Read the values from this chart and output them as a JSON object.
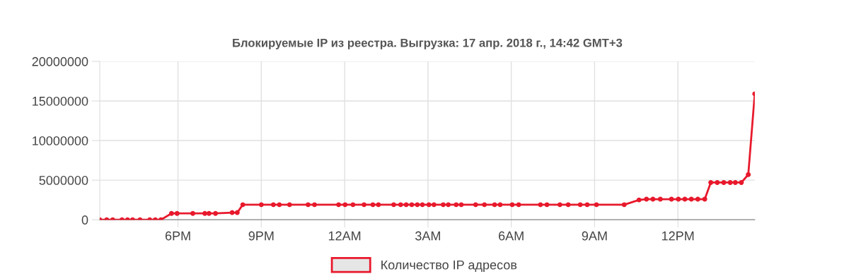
{
  "chart_data": {
    "type": "line",
    "title": "Блокируемые IP из реестра. Выгрузка: 17 апр. 2018 г., 14:42 GMT+3",
    "x": [
      "2018-04-16T15:11",
      "2018-04-16T15:26",
      "2018-04-16T15:39",
      "2018-04-16T15:59",
      "2018-04-16T16:11",
      "2018-04-16T16:22",
      "2018-04-16T16:38",
      "2018-04-16T16:59",
      "2018-04-16T17:11",
      "2018-04-16T17:23",
      "2018-04-16T17:46",
      "2018-04-16T17:58",
      "2018-04-16T18:32",
      "2018-04-16T18:58",
      "2018-04-16T19:07",
      "2018-04-16T19:21",
      "2018-04-16T19:57",
      "2018-04-16T20:08",
      "2018-04-16T20:20",
      "2018-04-16T21:00",
      "2018-04-16T21:26",
      "2018-04-16T21:39",
      "2018-04-16T22:01",
      "2018-04-16T22:41",
      "2018-04-16T22:55",
      "2018-04-16T23:47",
      "2018-04-17T00:01",
      "2018-04-17T00:18",
      "2018-04-17T00:42",
      "2018-04-17T01:01",
      "2018-04-17T01:13",
      "2018-04-17T01:46",
      "2018-04-17T02:01",
      "2018-04-17T02:13",
      "2018-04-17T02:25",
      "2018-04-17T02:37",
      "2018-04-17T02:48",
      "2018-04-17T03:02",
      "2018-04-17T03:13",
      "2018-04-17T03:33",
      "2018-04-17T03:44",
      "2018-04-17T04:01",
      "2018-04-17T04:12",
      "2018-04-17T04:43",
      "2018-04-17T05:02",
      "2018-04-17T05:24",
      "2018-04-17T05:36",
      "2018-04-17T06:02",
      "2018-04-17T06:16",
      "2018-04-17T07:03",
      "2018-04-17T07:17",
      "2018-04-17T07:45",
      "2018-04-17T08:03",
      "2018-04-17T08:29",
      "2018-04-17T08:44",
      "2018-04-17T09:04",
      "2018-04-17T10:04",
      "2018-04-17T10:36",
      "2018-04-17T10:52",
      "2018-04-17T11:06",
      "2018-04-17T11:22",
      "2018-04-17T11:46",
      "2018-04-17T12:01",
      "2018-04-17T12:15",
      "2018-04-17T12:29",
      "2018-04-17T12:43",
      "2018-04-17T12:58",
      "2018-04-17T13:11",
      "2018-04-17T13:25",
      "2018-04-17T13:39",
      "2018-04-17T13:53",
      "2018-04-17T14:04",
      "2018-04-17T14:17",
      "2018-04-17T14:32",
      "2018-04-17T14:46"
    ],
    "series": [
      {
        "name": "Количество IP адресов",
        "color": "#e8192c",
        "values": [
          0,
          0,
          0,
          0,
          0,
          0,
          0,
          0,
          0,
          0,
          800000,
          800000,
          800000,
          800000,
          800000,
          800000,
          900000,
          900000,
          1900000,
          1900000,
          1900000,
          1900000,
          1900000,
          1900000,
          1900000,
          1900000,
          1900000,
          1900000,
          1900000,
          1900000,
          1900000,
          1900000,
          1900000,
          1900000,
          1900000,
          1900000,
          1900000,
          1900000,
          1900000,
          1900000,
          1900000,
          1900000,
          1900000,
          1900000,
          1900000,
          1900000,
          1900000,
          1900000,
          1900000,
          1900000,
          1900000,
          1900000,
          1900000,
          1900000,
          1900000,
          1900000,
          1900000,
          2500000,
          2600000,
          2600000,
          2600000,
          2600000,
          2600000,
          2600000,
          2600000,
          2600000,
          2600000,
          4700000,
          4700000,
          4700000,
          4700000,
          4700000,
          4700000,
          5700000,
          15900000
        ]
      }
    ],
    "xlim": [
      "2018-04-16T15:11",
      "2018-04-17T14:46"
    ],
    "xticks": [
      {
        "value": "2018-04-16T18:00",
        "label": "6PM"
      },
      {
        "value": "2018-04-16T21:00",
        "label": "9PM"
      },
      {
        "value": "2018-04-17T00:00",
        "label": "12AM"
      },
      {
        "value": "2018-04-17T03:00",
        "label": "3AM"
      },
      {
        "value": "2018-04-17T06:00",
        "label": "6AM"
      },
      {
        "value": "2018-04-17T09:00",
        "label": "9AM"
      },
      {
        "value": "2018-04-17T12:00",
        "label": "12PM"
      }
    ],
    "ylim": [
      0,
      20000000
    ],
    "yticks": [
      0,
      5000000,
      10000000,
      15000000,
      20000000
    ],
    "grid": true,
    "legend": "bottom",
    "marker": "circle",
    "line_style": "solid"
  }
}
